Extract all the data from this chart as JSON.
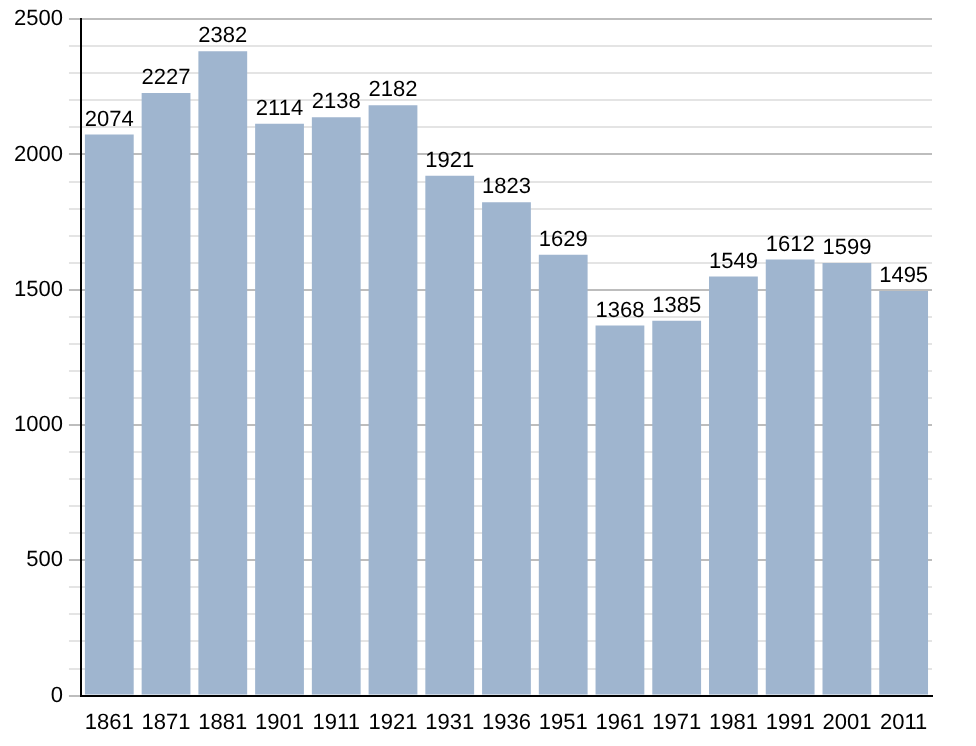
{
  "chart_data": {
    "type": "bar",
    "categories": [
      "1861",
      "1871",
      "1881",
      "1901",
      "1911",
      "1921",
      "1931",
      "1936",
      "1951",
      "1961",
      "1971",
      "1981",
      "1991",
      "2001",
      "2011"
    ],
    "values": [
      2074,
      2227,
      2382,
      2114,
      2138,
      2182,
      1921,
      1823,
      1629,
      1368,
      1385,
      1549,
      1612,
      1599,
      1495
    ],
    "color": "#9fb5cf",
    "ylim": [
      0,
      2500
    ],
    "yticks": [
      0,
      {
        "value": 100,
        "label": null
      },
      {
        "value": 200,
        "label": null
      },
      {
        "value": 300,
        "label": null
      },
      {
        "value": 400,
        "label": null
      },
      500,
      {
        "value": 600,
        "label": null
      },
      {
        "value": 700,
        "label": null
      },
      {
        "value": 800,
        "label": null
      },
      {
        "value": 900,
        "label": null
      },
      1000,
      {
        "value": 1100,
        "label": null
      },
      {
        "value": 1200,
        "label": null
      },
      {
        "value": 1300,
        "label": null
      },
      {
        "value": 1400,
        "label": null
      },
      1500,
      {
        "value": 1600,
        "label": null
      },
      {
        "value": 1700,
        "label": null
      },
      {
        "value": 1800,
        "label": null
      },
      {
        "value": 1900,
        "label": null
      },
      2000,
      {
        "value": 2100,
        "label": null
      },
      {
        "value": 2200,
        "label": null
      },
      {
        "value": 2300,
        "label": null
      },
      {
        "value": 2400,
        "label": null
      },
      2500
    ],
    "grid": "y",
    "data_labels": true
  }
}
